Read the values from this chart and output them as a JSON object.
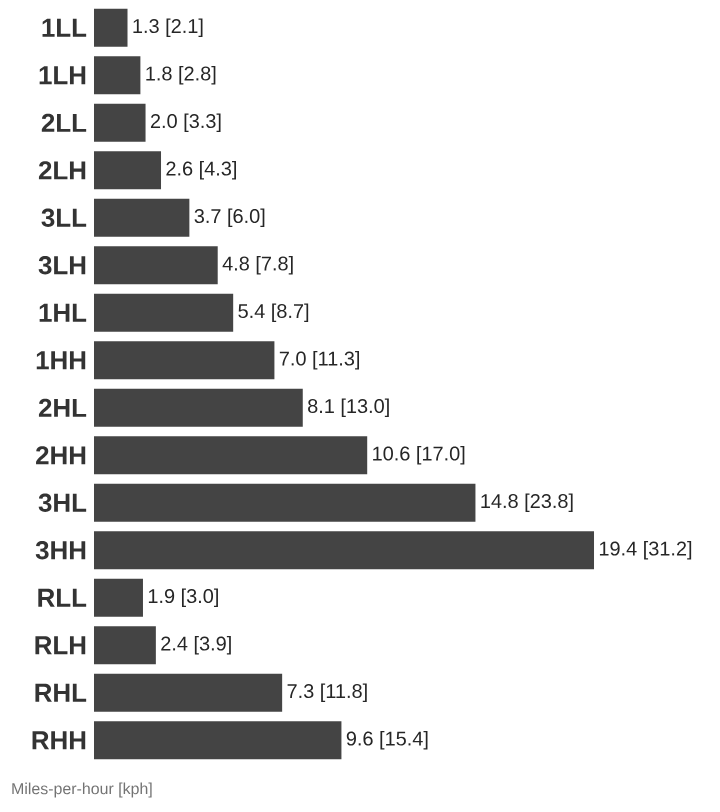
{
  "chart_data": {
    "type": "bar",
    "orientation": "horizontal",
    "categories": [
      "1LL",
      "1LH",
      "2LL",
      "2LH",
      "3LL",
      "3LH",
      "1HL",
      "1HH",
      "2HL",
      "2HH",
      "3HL",
      "3HH",
      "RLL",
      "RLH",
      "RHL",
      "RHH"
    ],
    "values": [
      1.3,
      1.8,
      2.0,
      2.6,
      3.7,
      4.8,
      5.4,
      7.0,
      8.1,
      10.6,
      14.8,
      19.4,
      1.9,
      2.4,
      7.3,
      9.6
    ],
    "value_labels": [
      "1.3 [2.1]",
      "1.8 [2.8]",
      "2.0 [3.3]",
      "2.6 [4.3]",
      "3.7 [6.0]",
      "4.8 [7.8]",
      "5.4 [8.7]",
      "7.0 [11.3]",
      "8.1 [13.0]",
      "10.6 [17.0]",
      "14.8 [23.8]",
      "19.4 [31.2]",
      "1.9 [3.0]",
      "2.4 [3.9]",
      "7.3 [11.8]",
      "9.6 [15.4]"
    ],
    "color": "#444444",
    "annotations": [
      "Miles-per-hour [kph]"
    ]
  }
}
